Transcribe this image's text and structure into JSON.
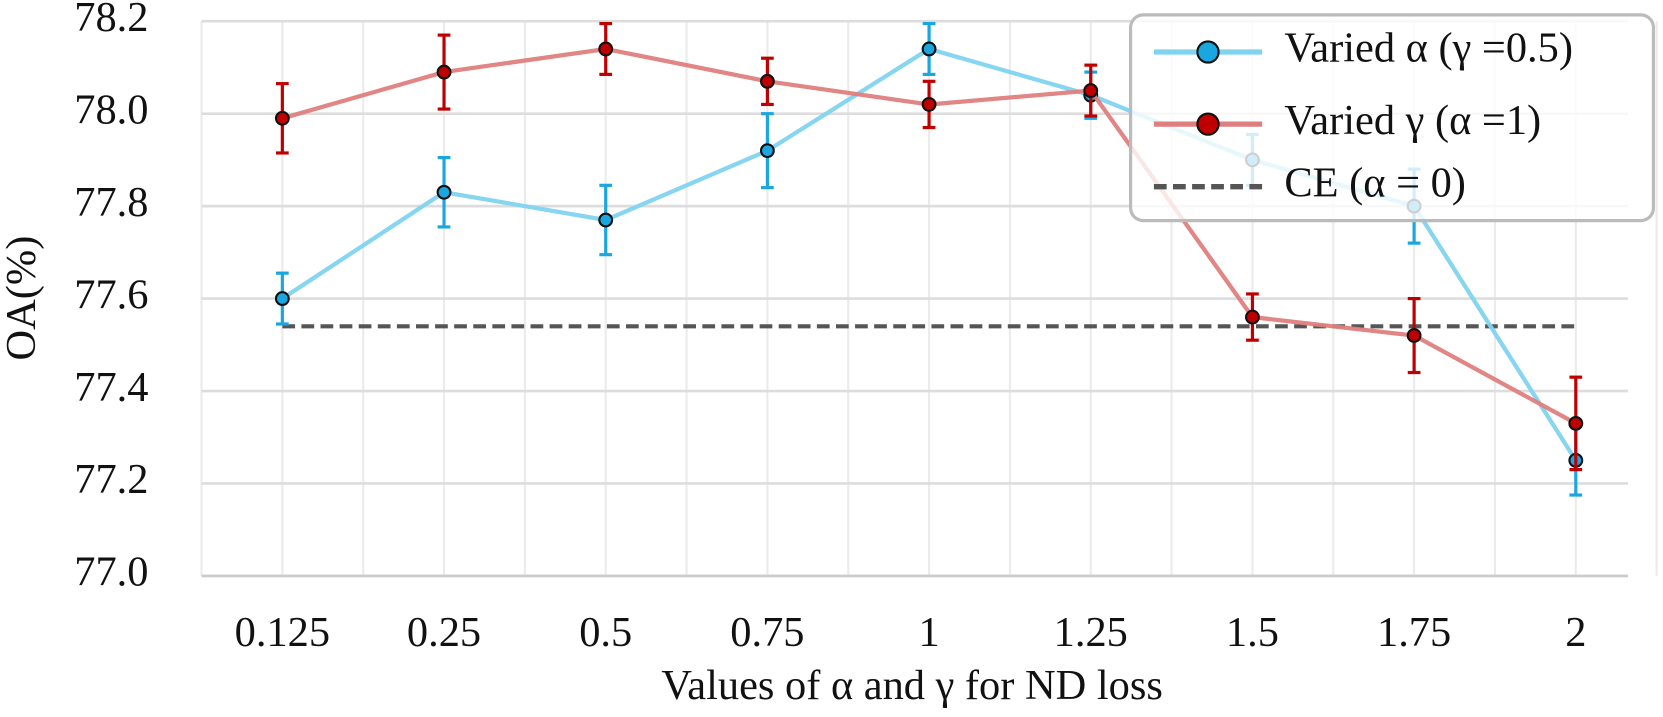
{
  "chart_data": {
    "type": "line",
    "x_label": "Values of α and γ for ND loss",
    "y_label": "OA(%)",
    "categories": [
      "0.125",
      "0.25",
      "0.5",
      "0.75",
      "1",
      "1.25",
      "1.5",
      "1.75",
      "2"
    ],
    "series": [
      {
        "name": "Varied α (γ =0.5)",
        "color": "#7fd3f0",
        "marker_color": "#1aa7e0",
        "error_color": "#1aa7e0",
        "values": [
          77.6,
          77.83,
          77.77,
          77.92,
          78.14,
          78.04,
          77.9,
          77.8,
          77.25
        ],
        "errors": [
          0.055,
          0.075,
          0.075,
          0.08,
          0.055,
          0.05,
          0.055,
          0.08,
          0.075
        ]
      },
      {
        "name": "Varied γ (α =1)",
        "color": "#df7e7e",
        "marker_color": "#c00000",
        "error_color": "#c00000",
        "values": [
          77.99,
          78.09,
          78.14,
          78.07,
          78.02,
          78.05,
          77.56,
          77.52,
          77.33
        ],
        "errors": [
          0.075,
          0.08,
          0.055,
          0.05,
          0.05,
          0.055,
          0.05,
          0.08,
          0.1
        ]
      }
    ],
    "baseline": {
      "name": "CE (α = 0)",
      "value": 77.54,
      "color": "#555555"
    },
    "ylim": [
      77.0,
      78.2
    ],
    "yticks": [
      {
        "value": 77.0,
        "label": "77.0"
      },
      77.2,
      77.4,
      77.6,
      77.8,
      {
        "value": 78.0,
        "label": "78.0"
      },
      78.2
    ],
    "grid": true,
    "legend": "upper right"
  }
}
